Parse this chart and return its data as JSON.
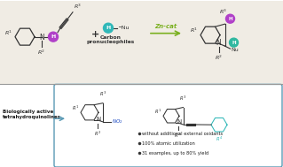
{
  "bg_color": "#ffffff",
  "top_bg": "#f0ece4",
  "bottom_box_color": "#5a9ab5",
  "zn_cat_color": "#7ab020",
  "h_circle_color_cyan": "#30b8b8",
  "h_circle_color_purple": "#b040c8",
  "h_circle_color_green": "#30b8a0",
  "no2_color": "#1040c0",
  "bond_color": "#333333",
  "text_color": "#333333",
  "bullet_text": [
    "without additional external oxidants",
    "100% atomic utilization",
    "31 examples, up to 80% yield"
  ],
  "biologically_active_text": "Biologically active\ntetrahydroquinolines",
  "carbon_pn_text": "Carbon\npronucleophiles",
  "zn_cat_text": "Zn-cat"
}
